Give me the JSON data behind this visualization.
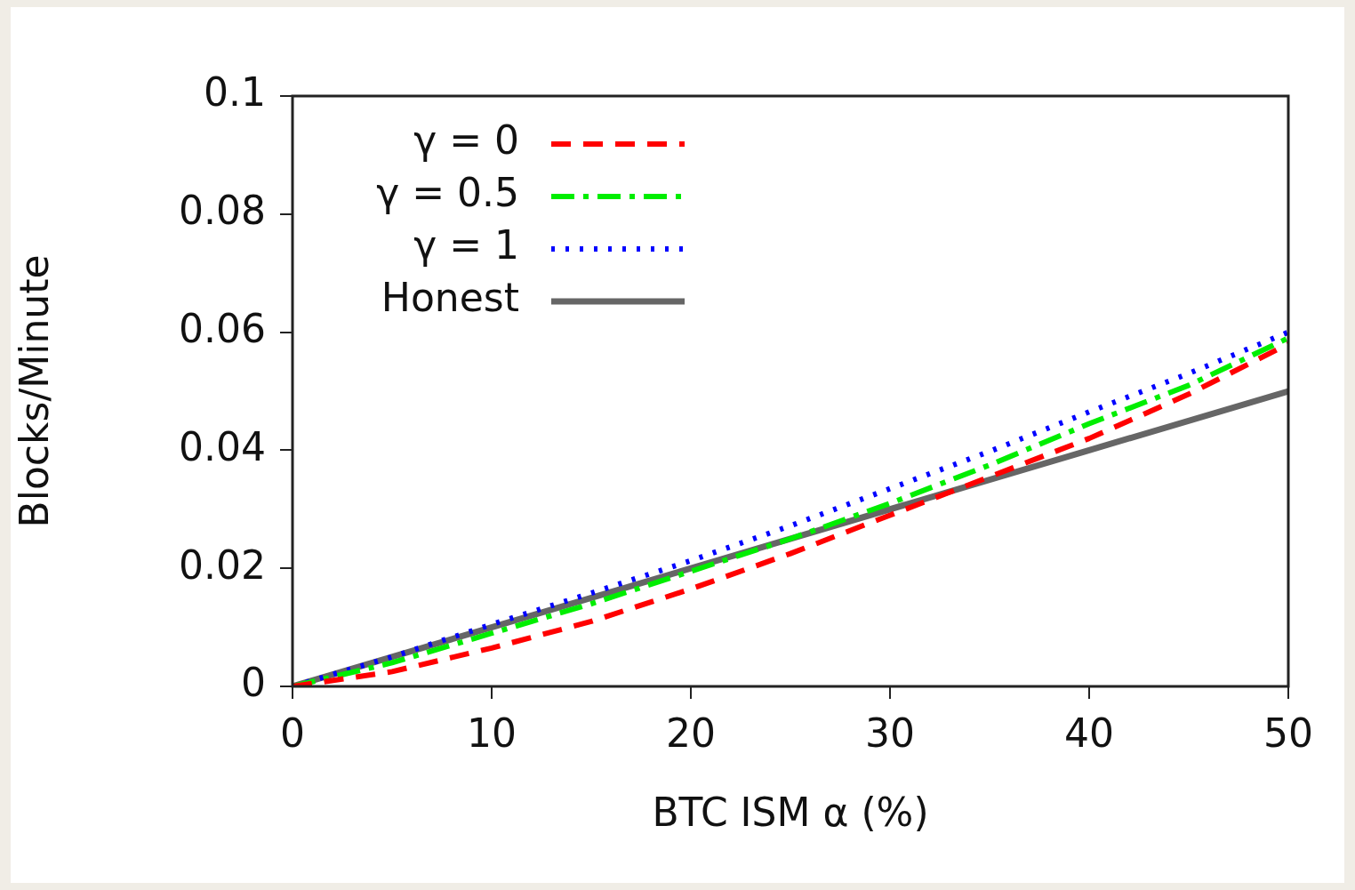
{
  "chart_data": {
    "type": "line",
    "xlabel": "BTC ISM α (%)",
    "ylabel": "Blocks/Minute",
    "xlim": [
      0,
      50
    ],
    "xticks": [
      0,
      10,
      20,
      30,
      40,
      50
    ],
    "ylim": [
      0,
      0.1
    ],
    "yticks": [
      0,
      0.02,
      0.04,
      0.06,
      0.08,
      0.1
    ],
    "grid": false,
    "legend": "top left",
    "marker": "none",
    "series": [
      {
        "name": "γ = 0",
        "color": "#ff0000",
        "line_style": "dashed",
        "x": [
          0,
          5,
          10,
          15,
          20,
          25,
          30,
          35,
          40,
          45,
          50
        ],
        "values": [
          0,
          0.0025,
          0.0065,
          0.011,
          0.0165,
          0.0225,
          0.029,
          0.0355,
          0.042,
          0.0495,
          0.058
        ]
      },
      {
        "name": "γ = 0.5",
        "color": "#00ee00",
        "line_style": "dashdot",
        "x": [
          0,
          5,
          10,
          15,
          20,
          25,
          30,
          35,
          40,
          45,
          50
        ],
        "values": [
          0,
          0.004,
          0.009,
          0.014,
          0.0195,
          0.025,
          0.031,
          0.0375,
          0.0445,
          0.051,
          0.059
        ]
      },
      {
        "name": "γ = 1",
        "color": "#0000ff",
        "line_style": "dotted",
        "x": [
          0,
          5,
          10,
          15,
          20,
          25,
          30,
          35,
          40,
          45,
          50
        ],
        "values": [
          0,
          0.005,
          0.0105,
          0.0158,
          0.0213,
          0.0272,
          0.0335,
          0.0398,
          0.0465,
          0.053,
          0.06
        ]
      },
      {
        "name": "Honest",
        "color": "#666666",
        "line_style": "solid",
        "x": [
          0,
          50
        ],
        "values": [
          0,
          0.05
        ]
      }
    ]
  }
}
